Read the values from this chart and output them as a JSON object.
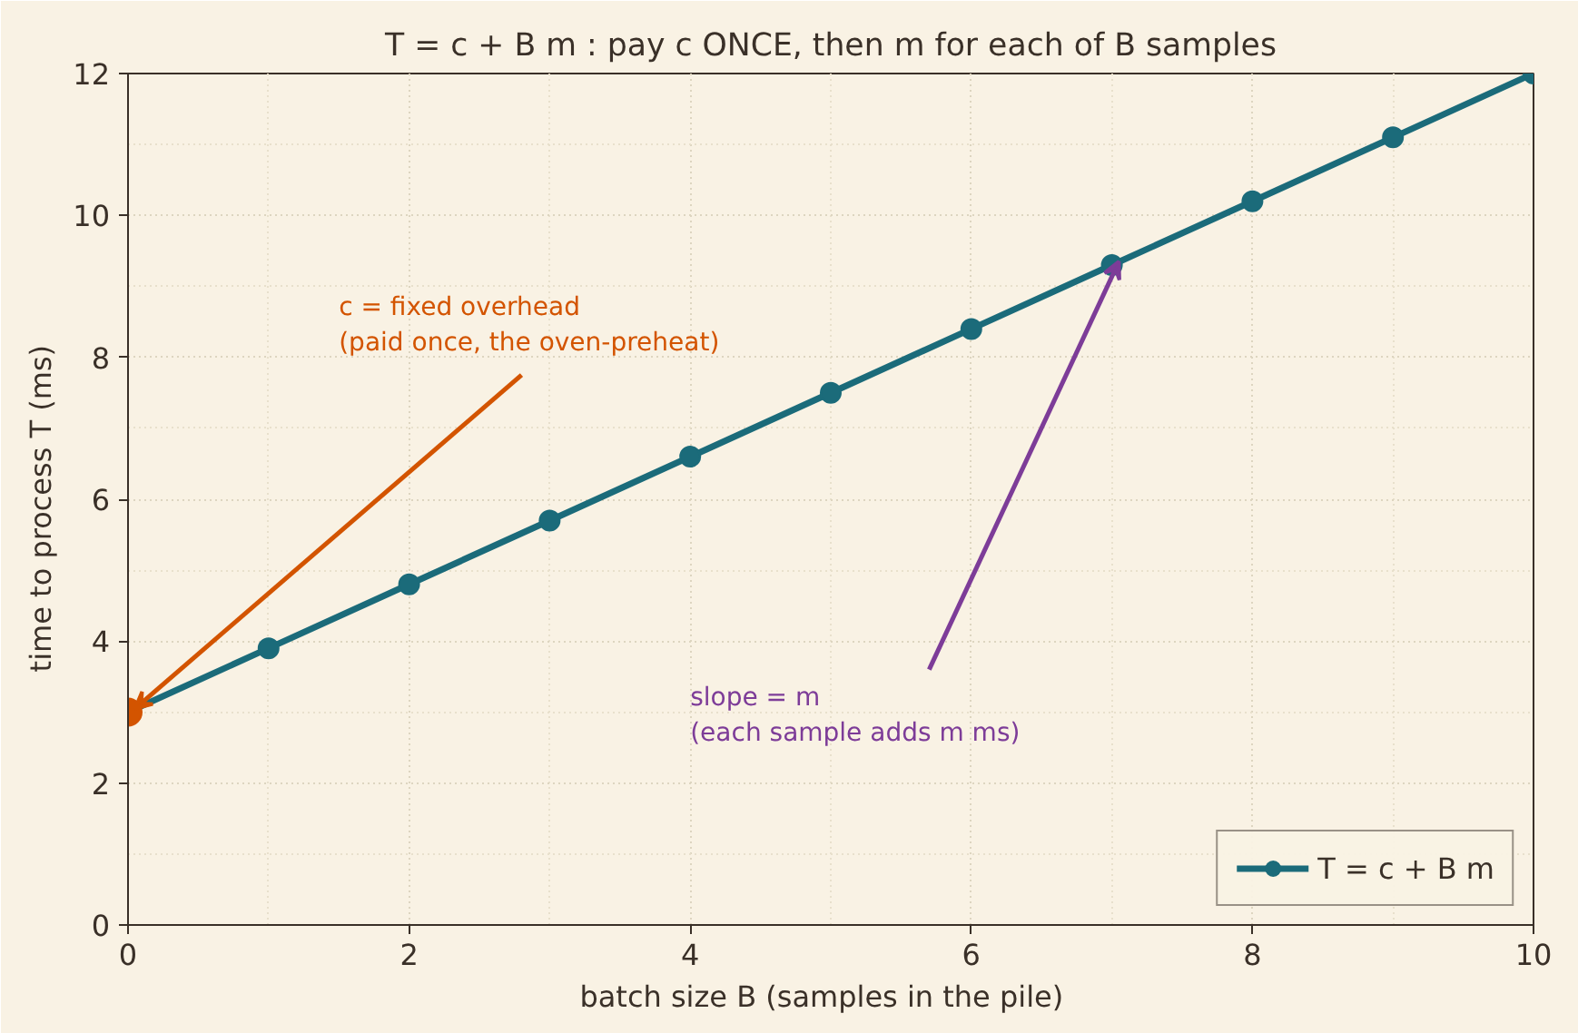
{
  "chart_data": {
    "type": "line",
    "title": "T = c + B m : pay c ONCE, then m for each of B samples",
    "xlabel": "batch size  B  (samples in the pile)",
    "ylabel": "time to process  T  (ms)",
    "x": [
      0,
      1,
      2,
      3,
      4,
      5,
      6,
      7,
      8,
      9,
      10
    ],
    "series": [
      {
        "name": "T = c + B m",
        "color": "#1b6b7a",
        "values": [
          3.0,
          3.9,
          4.8,
          5.7,
          6.6,
          7.5,
          8.4,
          9.3,
          10.2,
          11.1,
          12.0
        ]
      },
      {
        "type": "scatter",
        "color": "#d35400",
        "x": [
          0
        ],
        "values": [
          3.0
        ]
      }
    ],
    "annotations": [
      {
        "text": "c = fixed overhead\n(paid once, the oven-preheat)",
        "x": 0,
        "y": 3.0
      },
      {
        "text": "slope = m\n(each sample adds m ms)",
        "x": 7,
        "y": 9.3
      }
    ],
    "xlim": [
      0,
      10
    ],
    "ylim": [
      0,
      12
    ],
    "xticks": [
      0,
      2,
      4,
      6,
      8,
      10
    ],
    "yticks": [
      0,
      2,
      4,
      6,
      8,
      10,
      12
    ],
    "grid": true,
    "legend": "bottom right",
    "marker": "circle",
    "line_style": "solid"
  }
}
